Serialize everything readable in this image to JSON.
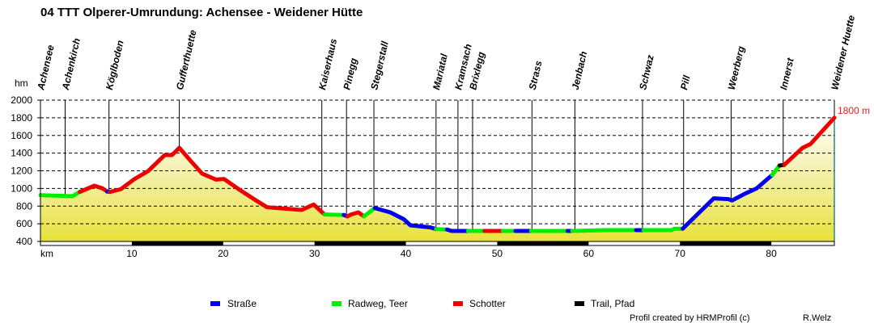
{
  "chart_data": {
    "type": "line",
    "title": "04 TTT Olperer-Umrundung: Achensee - Weidener Hütte",
    "xlabel": "km",
    "ylabel": "hm",
    "xlim": [
      0,
      86.9
    ],
    "ylim": [
      400,
      2000
    ],
    "yticks": [
      400,
      600,
      800,
      1000,
      1200,
      1400,
      1600,
      1800,
      2000
    ],
    "xticks": [
      10,
      20,
      30,
      40,
      50,
      60,
      70,
      80
    ],
    "grid": true,
    "end_label": "1800 m",
    "colors": {
      "road": "#0000ee",
      "cycle": "#00ee00",
      "gravel": "#ee0000",
      "trail": "#000000"
    },
    "legend": [
      {
        "type": "road",
        "label": "Straße"
      },
      {
        "type": "cycle",
        "label": "Radweg, Teer"
      },
      {
        "type": "gravel",
        "label": "Schotter"
      },
      {
        "type": "trail",
        "label": "Trail, Pfad"
      }
    ],
    "waypoints": [
      {
        "name": "Achensee",
        "km": 0
      },
      {
        "name": "Achenkirch",
        "km": 2.7
      },
      {
        "name": "Kögl​boden",
        "km": 7.5
      },
      {
        "name": "Gufferthuette",
        "km": 15.2
      },
      {
        "name": "Kaiserhaus",
        "km": 30.8
      },
      {
        "name": "Pinegg",
        "km": 33.5
      },
      {
        "name": "Stegerstall",
        "km": 36.5
      },
      {
        "name": "Mariatal",
        "km": 43.3
      },
      {
        "name": "Kramsach",
        "km": 45.7
      },
      {
        "name": "Brixlegg",
        "km": 47.3
      },
      {
        "name": "Strass",
        "km": 53.8
      },
      {
        "name": "Jenbach",
        "km": 58.5
      },
      {
        "name": "Schwaz",
        "km": 65.9
      },
      {
        "name": "Pill",
        "km": 70.4
      },
      {
        "name": "Weerberg",
        "km": 75.6
      },
      {
        "name": "Innerst",
        "km": 81.3
      },
      {
        "name": "Weidener Huette",
        "km": 86.9
      }
    ],
    "segments": [
      {
        "type": "cycle",
        "points": [
          [
            0,
            924
          ],
          [
            2,
            918
          ],
          [
            3.5,
            912
          ],
          [
            4.3,
            961
          ]
        ]
      },
      {
        "type": "gravel",
        "points": [
          [
            4.3,
            961
          ],
          [
            5.9,
            1031
          ],
          [
            6.8,
            1001
          ],
          [
            7.3,
            965
          ]
        ]
      },
      {
        "type": "road",
        "points": [
          [
            7.3,
            965
          ],
          [
            7.6,
            961
          ]
        ]
      },
      {
        "type": "gravel",
        "points": [
          [
            7.6,
            961
          ],
          [
            8.8,
            992
          ],
          [
            10.3,
            1107
          ],
          [
            11.8,
            1198
          ],
          [
            13.6,
            1378
          ],
          [
            14.4,
            1378
          ],
          [
            15.2,
            1460
          ],
          [
            16.5,
            1305
          ],
          [
            17.7,
            1168
          ],
          [
            19.2,
            1101
          ],
          [
            20.1,
            1107
          ],
          [
            21.8,
            985
          ],
          [
            23.6,
            864
          ],
          [
            24.8,
            787
          ],
          [
            28.6,
            757
          ],
          [
            29.9,
            818
          ],
          [
            31.1,
            705
          ]
        ]
      },
      {
        "type": "cycle",
        "points": [
          [
            31.1,
            705
          ],
          [
            33.2,
            700
          ]
        ]
      },
      {
        "type": "road",
        "points": [
          [
            33.2,
            700
          ],
          [
            33.6,
            684
          ]
        ]
      },
      {
        "type": "gravel",
        "points": [
          [
            33.6,
            684
          ],
          [
            34.0,
            705
          ],
          [
            34.8,
            729
          ],
          [
            35.4,
            684
          ]
        ]
      },
      {
        "type": "cycle",
        "points": [
          [
            35.4,
            684
          ],
          [
            36.6,
            778
          ]
        ]
      },
      {
        "type": "road",
        "points": [
          [
            36.6,
            778
          ],
          [
            38.3,
            729
          ],
          [
            39.8,
            650
          ],
          [
            40.5,
            583
          ],
          [
            42.7,
            559
          ],
          [
            43.3,
            540
          ]
        ]
      },
      {
        "type": "cycle",
        "points": [
          [
            43.3,
            540
          ],
          [
            44.5,
            535
          ]
        ]
      },
      {
        "type": "road",
        "points": [
          [
            44.5,
            535
          ],
          [
            45.0,
            519
          ],
          [
            46.8,
            519
          ]
        ]
      },
      {
        "type": "cycle",
        "points": [
          [
            46.8,
            519
          ],
          [
            48.6,
            519
          ]
        ]
      },
      {
        "type": "gravel",
        "points": [
          [
            48.6,
            519
          ],
          [
            50.6,
            519
          ]
        ]
      },
      {
        "type": "cycle",
        "points": [
          [
            50.6,
            519
          ],
          [
            52.0,
            519
          ]
        ]
      },
      {
        "type": "road",
        "points": [
          [
            52.0,
            519
          ],
          [
            53.7,
            519
          ]
        ]
      },
      {
        "type": "cycle",
        "points": [
          [
            53.7,
            519
          ],
          [
            57.7,
            519
          ]
        ]
      },
      {
        "type": "road",
        "points": [
          [
            57.7,
            519
          ],
          [
            58.2,
            519
          ]
        ]
      },
      {
        "type": "cycle",
        "points": [
          [
            58.2,
            519
          ],
          [
            61.9,
            528
          ],
          [
            65.2,
            528
          ]
        ]
      },
      {
        "type": "road",
        "points": [
          [
            65.2,
            528
          ],
          [
            66.0,
            528
          ]
        ]
      },
      {
        "type": "cycle",
        "points": [
          [
            66.0,
            528
          ],
          [
            69.1,
            528
          ],
          [
            69.4,
            544
          ],
          [
            70.3,
            544
          ]
        ]
      },
      {
        "type": "road",
        "points": [
          [
            70.3,
            544
          ],
          [
            73.7,
            888
          ],
          [
            75.3,
            879
          ],
          [
            75.7,
            864
          ],
          [
            77.1,
            940
          ],
          [
            78.4,
            1001
          ],
          [
            80.1,
            1153
          ]
        ]
      },
      {
        "type": "cycle",
        "points": [
          [
            80.1,
            1153
          ],
          [
            80.9,
            1260
          ]
        ]
      },
      {
        "type": "trail",
        "points": [
          [
            80.9,
            1260
          ],
          [
            81.4,
            1266
          ]
        ]
      },
      {
        "type": "gravel",
        "points": [
          [
            81.4,
            1266
          ],
          [
            83.4,
            1458
          ],
          [
            84.3,
            1504
          ],
          [
            86.9,
            1800
          ]
        ]
      }
    ]
  },
  "footer": {
    "credit": "Profil created by HRMProfil (c)",
    "author": "R.Welz"
  }
}
